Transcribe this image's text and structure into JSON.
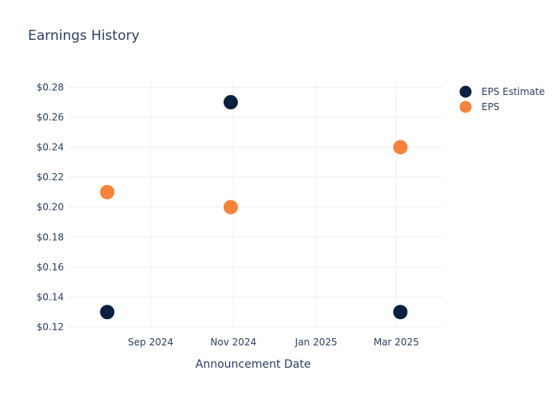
{
  "chart_data": {
    "type": "scatter",
    "title": "Earnings History",
    "xlabel": "Announcement Date",
    "ylabel": "",
    "ylim": [
      0.12,
      0.285
    ],
    "xlim": [
      "2024-07-02",
      "2025-04-04"
    ],
    "y_ticks": [
      {
        "value": 0.12,
        "label": "$0.12"
      },
      {
        "value": 0.14,
        "label": "$0.14"
      },
      {
        "value": 0.16,
        "label": "$0.16"
      },
      {
        "value": 0.18,
        "label": "$0.18"
      },
      {
        "value": 0.2,
        "label": "$0.20"
      },
      {
        "value": 0.22,
        "label": "$0.22"
      },
      {
        "value": 0.24,
        "label": "$0.24"
      },
      {
        "value": 0.26,
        "label": "$0.26"
      },
      {
        "value": 0.28,
        "label": "$0.28"
      }
    ],
    "x_ticks": [
      {
        "date": "2024-09-01",
        "label": "Sep 2024"
      },
      {
        "date": "2024-11-01",
        "label": "Nov 2024"
      },
      {
        "date": "2025-01-01",
        "label": "Jan 2025"
      },
      {
        "date": "2025-03-01",
        "label": "Mar 2025"
      }
    ],
    "grid": true,
    "legend_position": "top-right",
    "series": [
      {
        "name": "EPS Estimate",
        "color": "#0b1f3f",
        "points": [
          {
            "date": "2024-07-31",
            "value": 0.13
          },
          {
            "date": "2024-10-30",
            "value": 0.27
          },
          {
            "date": "2025-03-04",
            "value": 0.13
          }
        ]
      },
      {
        "name": "EPS",
        "color": "#f5843a",
        "points": [
          {
            "date": "2024-07-31",
            "value": 0.21
          },
          {
            "date": "2024-10-30",
            "value": 0.2
          },
          {
            "date": "2025-03-04",
            "value": 0.24
          }
        ]
      }
    ]
  }
}
